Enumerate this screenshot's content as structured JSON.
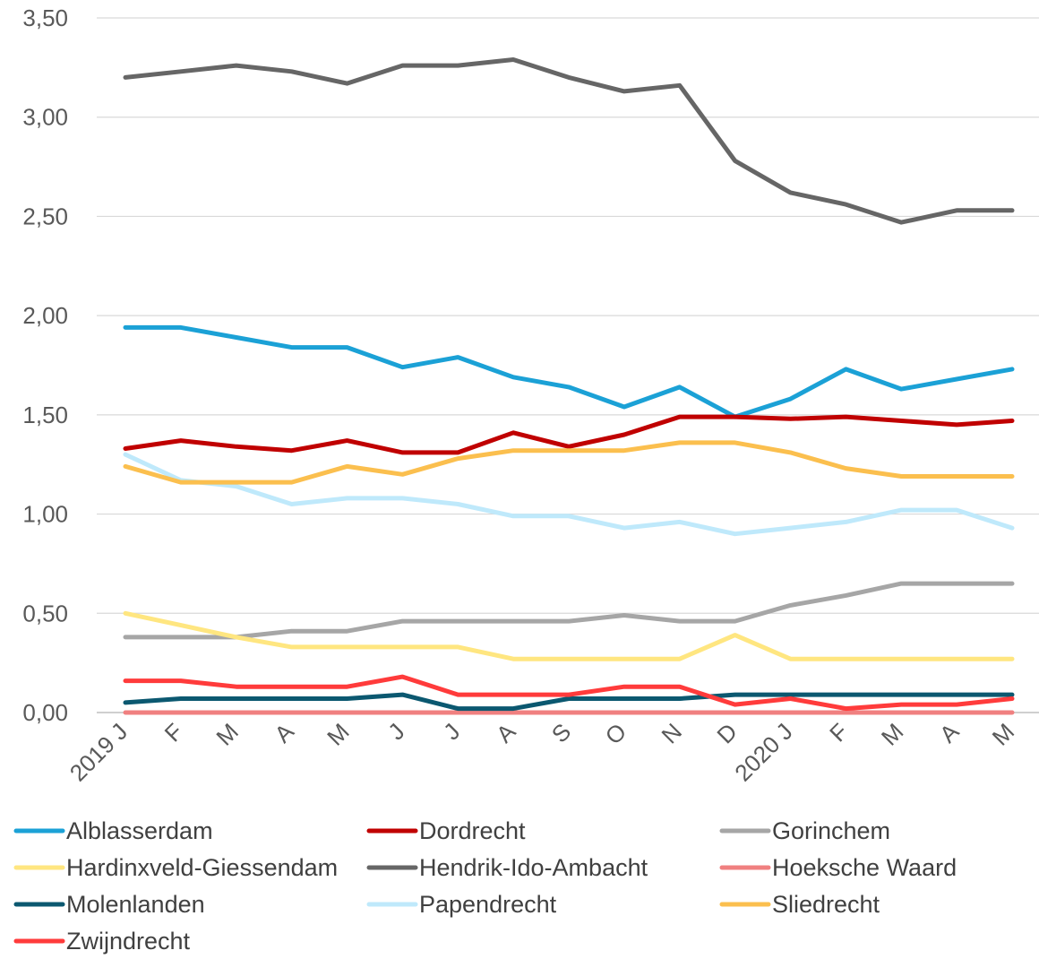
{
  "chart_data": {
    "type": "line",
    "title": "",
    "xlabel": "",
    "ylabel": "",
    "ylim": [
      0,
      3.5
    ],
    "yticks": [
      "0,00",
      "0,50",
      "1,00",
      "1,50",
      "2,00",
      "2,50",
      "3,00",
      "3,50"
    ],
    "grid": true,
    "legend_position": "bottom",
    "categories": [
      "2019 J",
      "F",
      "M",
      "A",
      "M",
      "J",
      "J",
      "A",
      "S",
      "O",
      "N",
      "D",
      "2020 J",
      "F",
      "M",
      "A",
      "M"
    ],
    "series": [
      {
        "name": "Alblasserdam",
        "color": "#1ba1d6",
        "values": [
          1.94,
          1.94,
          1.89,
          1.84,
          1.84,
          1.74,
          1.79,
          1.69,
          1.64,
          1.54,
          1.64,
          1.49,
          1.58,
          1.73,
          1.63,
          1.68,
          1.73
        ]
      },
      {
        "name": "Dordrecht",
        "color": "#c00000",
        "values": [
          1.33,
          1.37,
          1.34,
          1.32,
          1.37,
          1.31,
          1.31,
          1.41,
          1.34,
          1.4,
          1.49,
          1.49,
          1.48,
          1.49,
          1.47,
          1.45,
          1.47
        ]
      },
      {
        "name": "Gorinchem",
        "color": "#a6a6a6",
        "values": [
          0.38,
          0.38,
          0.38,
          0.41,
          0.41,
          0.46,
          0.46,
          0.46,
          0.46,
          0.49,
          0.46,
          0.46,
          0.54,
          0.59,
          0.65,
          0.65,
          0.65
        ]
      },
      {
        "name": "Hardinxveld-Giessendam",
        "color": "#ffe680",
        "values": [
          0.5,
          0.44,
          0.38,
          0.33,
          0.33,
          0.33,
          0.33,
          0.27,
          0.27,
          0.27,
          0.27,
          0.39,
          0.27,
          0.27,
          0.27,
          0.27,
          0.27
        ]
      },
      {
        "name": "Hendrik-Ido-Ambacht",
        "color": "#666666",
        "values": [
          3.2,
          3.23,
          3.26,
          3.23,
          3.17,
          3.26,
          3.26,
          3.29,
          3.2,
          3.13,
          3.16,
          2.78,
          2.62,
          2.56,
          2.47,
          2.53,
          2.53
        ]
      },
      {
        "name": "Hoeksche Waard",
        "color": "#f08080",
        "values": [
          0,
          0,
          0,
          0,
          0,
          0,
          0,
          0,
          0,
          0,
          0,
          0,
          0,
          0,
          0,
          0,
          0
        ]
      },
      {
        "name": "Molenlanden",
        "color": "#0b5870",
        "values": [
          0.05,
          0.07,
          0.07,
          0.07,
          0.07,
          0.09,
          0.02,
          0.02,
          0.07,
          0.07,
          0.07,
          0.09,
          0.09,
          0.09,
          0.09,
          0.09,
          0.09
        ]
      },
      {
        "name": "Papendrecht",
        "color": "#bfe9fb",
        "values": [
          1.3,
          1.17,
          1.14,
          1.05,
          1.08,
          1.08,
          1.05,
          0.99,
          0.99,
          0.93,
          0.96,
          0.9,
          0.93,
          0.96,
          1.02,
          1.02,
          0.93
        ]
      },
      {
        "name": "Sliedrecht",
        "color": "#fbbf4e",
        "values": [
          1.24,
          1.16,
          1.16,
          1.16,
          1.24,
          1.2,
          1.28,
          1.32,
          1.32,
          1.32,
          1.36,
          1.36,
          1.31,
          1.23,
          1.19,
          1.19,
          1.19
        ]
      },
      {
        "name": "Zwijndrecht",
        "color": "#ff3b3b",
        "values": [
          0.16,
          0.16,
          0.13,
          0.13,
          0.13,
          0.18,
          0.09,
          0.09,
          0.09,
          0.13,
          0.13,
          0.04,
          0.07,
          0.02,
          0.04,
          0.04,
          0.07
        ]
      }
    ]
  }
}
